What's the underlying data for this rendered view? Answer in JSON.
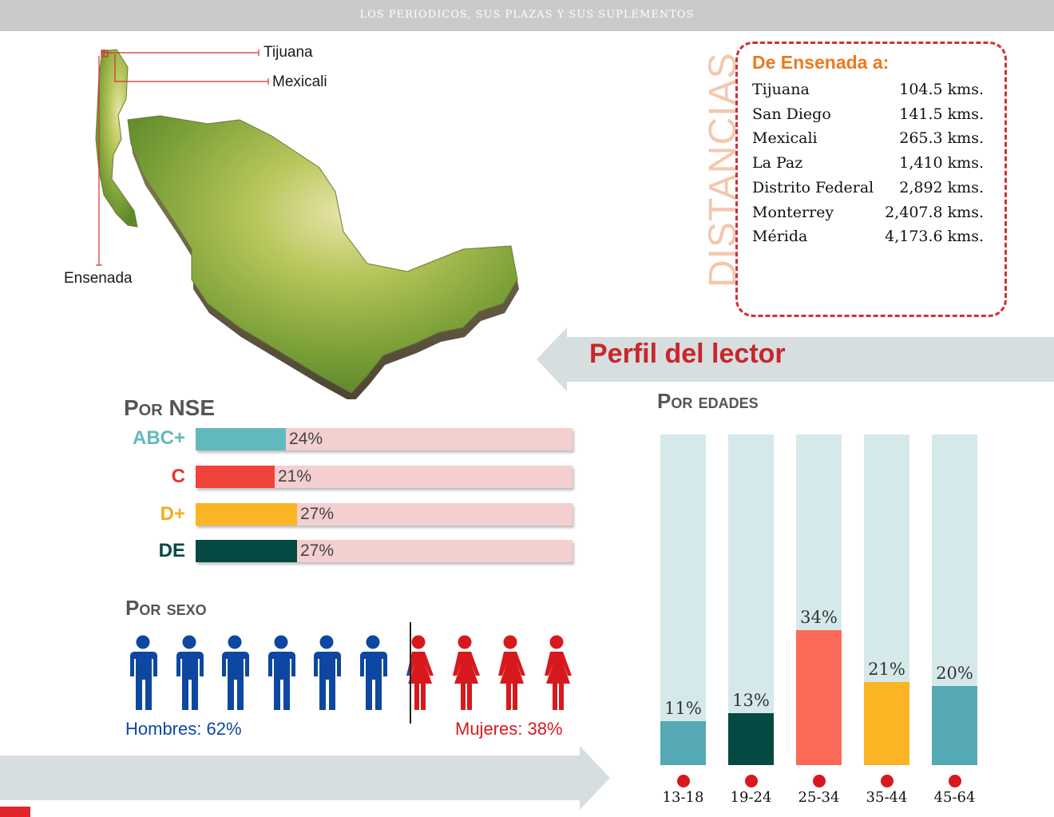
{
  "header": {
    "title": "LOS PERIODICOS, SUS PLAZAS Y SUS SUPLEMENTOS"
  },
  "map": {
    "labels": [
      "Tijuana",
      "Mexicali",
      "Ensenada"
    ]
  },
  "distances": {
    "vertical_title": "DISTANCIAS",
    "header": "De Ensenada a:",
    "rows": [
      {
        "city": "Tijuana",
        "km": "104.5 kms."
      },
      {
        "city": "San Diego",
        "km": "141.5 kms."
      },
      {
        "city": "Mexicali",
        "km": "265.3 kms."
      },
      {
        "city": "La Paz",
        "km": "1,410 kms."
      },
      {
        "city": "Distrito Federal",
        "km": "2,892 kms."
      },
      {
        "city": "Monterrey",
        "km": "2,407.8 kms."
      },
      {
        "city": "Mérida",
        "km": "4,173.6 kms."
      }
    ]
  },
  "perfil": {
    "title": "Perfil del lector"
  },
  "nse": {
    "title": "Por NSE"
  },
  "sexo": {
    "title": "Por sexo",
    "men_label": "Hombres: 62%",
    "women_label": "Mujeres: 38%",
    "men_color": "#0d47a1",
    "women_color": "#d7191e"
  },
  "edades": {
    "title": "Por edades"
  },
  "colors": {
    "teal": "#55a9b4",
    "red": "#f0443a",
    "yellow": "#fbb424",
    "darkgreen": "#054943",
    "salmon": "#fb6958",
    "track_pink": "#f4cfd0",
    "track_light": "#d5e9ea",
    "accent_red": "#c8262b"
  },
  "chart_data": [
    {
      "type": "bar",
      "orientation": "horizontal",
      "title": "Por NSE",
      "categories": [
        "ABC+",
        "C",
        "D+",
        "DE"
      ],
      "values": [
        24,
        21,
        27,
        27
      ],
      "labels": [
        "24%",
        "21%",
        "27%",
        "27%"
      ],
      "colors": [
        "#62b9bd",
        "#f0443a",
        "#fbb424",
        "#054943"
      ],
      "xlim": [
        0,
        100
      ]
    },
    {
      "type": "pictogram",
      "title": "Por sexo",
      "categories": [
        "Hombres",
        "Mujeres"
      ],
      "values": [
        62,
        38
      ],
      "icon_count": 10
    },
    {
      "type": "bar",
      "title": "Por edades",
      "categories": [
        "13-18",
        "19-24",
        "25-34",
        "35-44",
        "45-64"
      ],
      "values": [
        11,
        13,
        34,
        21,
        20
      ],
      "labels": [
        "11%",
        "13%",
        "34%",
        "21%",
        "20%"
      ],
      "colors": [
        "#55a9b4",
        "#054943",
        "#fb6958",
        "#fbb424",
        "#55a9b4"
      ],
      "ylim": [
        0,
        100
      ]
    }
  ]
}
